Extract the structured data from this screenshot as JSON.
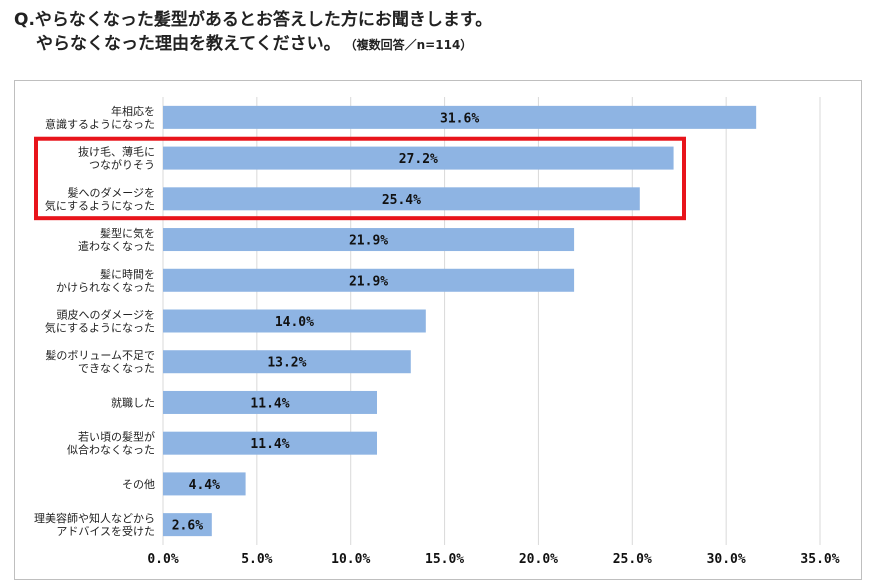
{
  "header": {
    "title_line1": "Q.やらなくなった髪型があるとお答えした方にお聞きします。",
    "title_line2": "やらなくなった理由を教えてください。",
    "note": "（複数回答／n=114）"
  },
  "colors": {
    "bar": "#8eb4e3",
    "highlight": "#e8141b",
    "grid": "#d9d9d9"
  },
  "chart_data": {
    "type": "bar",
    "orientation": "horizontal",
    "categories": [
      [
        "年相応を",
        "意識するようになった"
      ],
      [
        "抜け毛、薄毛に",
        "つながりそう"
      ],
      [
        "髪へのダメージを",
        "気にするようになった"
      ],
      [
        "髪型に気を",
        "遣わなくなった"
      ],
      [
        "髪に時間を",
        "かけられなくなった"
      ],
      [
        "頭皮へのダメージを",
        "気にするようになった"
      ],
      [
        "髪のボリューム不足で",
        "できなくなった"
      ],
      [
        "就職した"
      ],
      [
        "若い頃の髪型が",
        "似合わなくなった"
      ],
      [
        "その他"
      ],
      [
        "理美容師や知人などから",
        "アドバイスを受けた"
      ]
    ],
    "values": [
      31.6,
      27.2,
      25.4,
      21.9,
      21.9,
      14.0,
      13.2,
      11.4,
      11.4,
      4.4,
      2.6
    ],
    "value_labels": [
      "31.6%",
      "27.2%",
      "25.4%",
      "21.9%",
      "21.9%",
      "14.0%",
      "13.2%",
      "11.4%",
      "11.4%",
      "4.4%",
      "2.6%"
    ],
    "xlim": [
      0,
      35
    ],
    "xticks": [
      0,
      5,
      10,
      15,
      20,
      25,
      30,
      35
    ],
    "xtick_labels": [
      "0.0%",
      "5.0%",
      "10.0%",
      "15.0%",
      "20.0%",
      "25.0%",
      "30.0%",
      "35.0%"
    ],
    "grid": true,
    "highlighted_categories": [
      1,
      2
    ]
  }
}
